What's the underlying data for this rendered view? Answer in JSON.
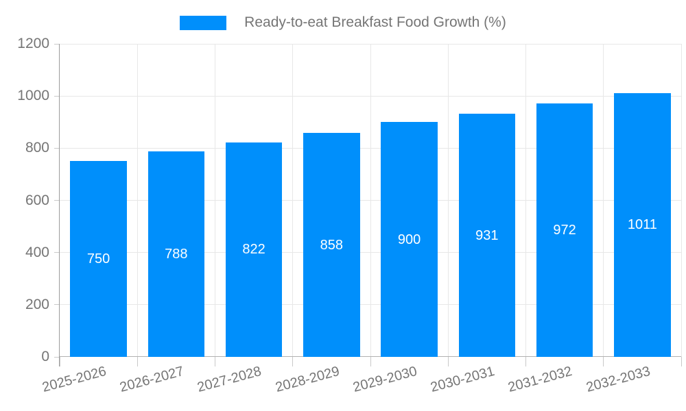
{
  "legend": {
    "title": "Ready-to-eat Breakfast Food Growth (%)"
  },
  "colors": {
    "bar": "#008FFB",
    "axis_text": "#757575",
    "value_label": "#ffffff",
    "gridline": "#e7e7e7",
    "axis_line": "#b0b0b0"
  },
  "chart_data": {
    "type": "bar",
    "title": "Ready-to-eat Breakfast Food Growth (%)",
    "series_name": "Ready-to-eat Breakfast Food Growth (%)",
    "categories": [
      "2025-2026",
      "2026-2027",
      "2027-2028",
      "2028-2029",
      "2029-2030",
      "2030-2031",
      "2031-2032",
      "2032-2033"
    ],
    "values": [
      750,
      788,
      822,
      858,
      900,
      931,
      972,
      1011
    ],
    "xlabel": "",
    "ylabel": "",
    "ylim": [
      0,
      1200
    ],
    "yticks": [
      0,
      200,
      400,
      600,
      800,
      1000,
      1200
    ],
    "grid": true,
    "legend_position": "top-center",
    "value_labels": "inside-center",
    "x_label_rotation_deg": -15
  }
}
